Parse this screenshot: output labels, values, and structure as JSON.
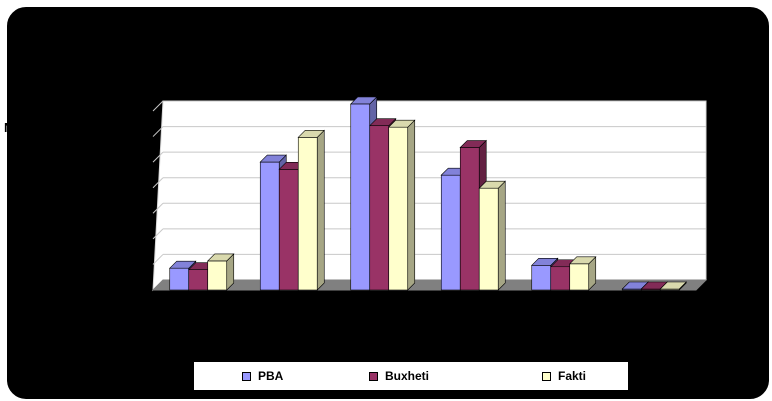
{
  "chart_data": {
    "type": "bar",
    "categories": [
      "",
      "",
      "",
      "",
      "",
      ""
    ],
    "series": [
      {
        "name": "PBA",
        "values": [
          1.5,
          8.8,
          12.8,
          7.9,
          1.7,
          0.0
        ]
      },
      {
        "name": "Buxheti",
        "values": [
          1.4,
          8.3,
          11.3,
          9.8,
          1.6,
          0.0
        ]
      },
      {
        "name": "Fakti",
        "values": [
          2.0,
          10.5,
          11.2,
          7.0,
          1.8,
          0.0
        ]
      }
    ],
    "ylim": [
      0,
      13
    ],
    "grid": true,
    "legend": "bottom",
    "colors": {
      "PBA": "#9999ff",
      "Buxheti": "#993366",
      "Fakti": "#ffffcc"
    },
    "axis_fragment": "N"
  }
}
